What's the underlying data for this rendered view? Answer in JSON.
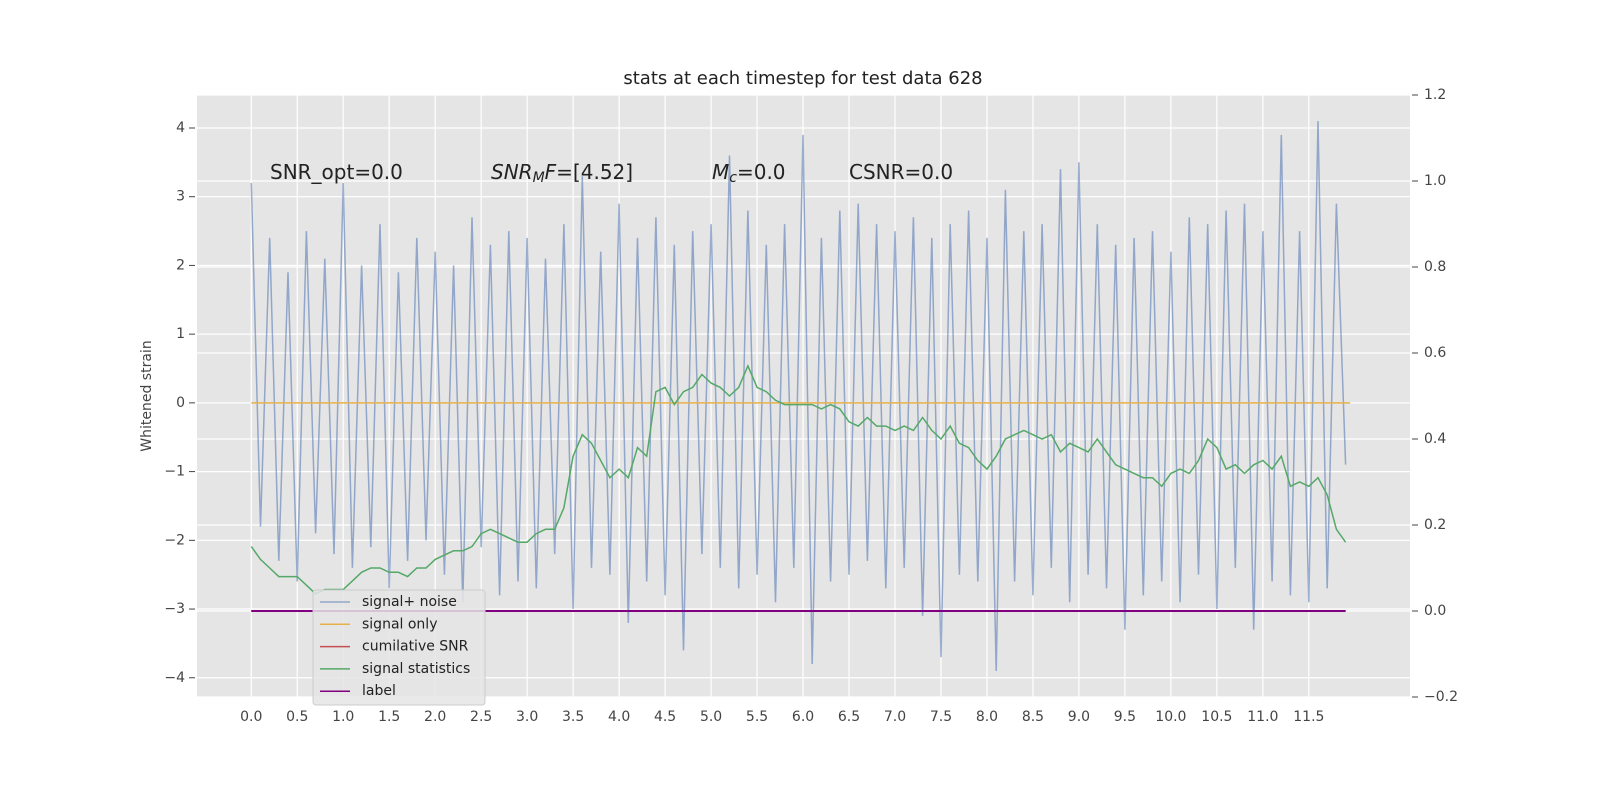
{
  "chart_data": {
    "type": "line",
    "title": "stats at each timestep for test data 628",
    "ylabel": "Whitened strain",
    "annotations": [
      {
        "parts": [
          {
            "text": "SNR_opt=0.0",
            "style": "normal"
          }
        ]
      },
      {
        "parts": [
          {
            "text": "SNR",
            "style": "italic"
          },
          {
            "text": "M",
            "style": "italic-sub"
          },
          {
            "text": "F",
            "style": "italic"
          },
          {
            "text": "=[4.52]",
            "style": "normal"
          }
        ]
      },
      {
        "parts": [
          {
            "text": "M",
            "style": "italic"
          },
          {
            "text": "c",
            "style": "italic-sub"
          },
          {
            "text": "=0.0",
            "style": "normal"
          }
        ]
      },
      {
        "parts": [
          {
            "text": "CSNR=0.0",
            "style": "normal"
          }
        ]
      }
    ],
    "x": [
      0,
      0.1,
      0.2,
      0.3,
      0.4,
      0.5,
      0.6,
      0.7,
      0.8,
      0.9,
      1,
      1.1,
      1.2,
      1.3,
      1.4,
      1.5,
      1.6,
      1.7,
      1.8,
      1.9,
      2,
      2.1,
      2.2,
      2.3,
      2.4,
      2.5,
      2.6,
      2.7,
      2.8,
      2.9,
      3,
      3.1,
      3.2,
      3.3,
      3.4,
      3.5,
      3.6,
      3.7,
      3.8,
      3.9,
      4,
      4.1,
      4.2,
      4.3,
      4.4,
      4.5,
      4.6,
      4.7,
      4.8,
      4.9,
      5,
      5.1,
      5.2,
      5.3,
      5.4,
      5.5,
      5.6,
      5.7,
      5.8,
      5.9,
      6,
      6.1,
      6.2,
      6.3,
      6.4,
      6.5,
      6.6,
      6.7,
      6.8,
      6.9,
      7,
      7.1,
      7.2,
      7.3,
      7.4,
      7.5,
      7.6,
      7.7,
      7.8,
      7.9,
      8,
      8.1,
      8.2,
      8.3,
      8.4,
      8.5,
      8.6,
      8.7,
      8.8,
      8.9,
      9,
      9.1,
      9.2,
      9.3,
      9.4,
      9.5,
      9.6,
      9.7,
      9.8,
      9.9,
      10,
      10.1,
      10.2,
      10.3,
      10.4,
      10.5,
      10.6,
      10.7,
      10.8,
      10.9,
      11,
      11.1,
      11.2,
      11.3,
      11.4,
      11.5,
      11.6,
      11.7,
      11.8,
      11.9
    ],
    "series": [
      {
        "name": "signal+ noise",
        "color": "#4c72b0",
        "alpha": 0.55,
        "axis": "y",
        "values": [
          3.2,
          -1.8,
          2.4,
          -2.3,
          1.9,
          -2.6,
          2.5,
          -1.9,
          2.1,
          -2.2,
          3.2,
          -2.4,
          2.0,
          -2.1,
          2.6,
          -2.7,
          1.9,
          -2.3,
          2.4,
          -2.0,
          2.2,
          -2.5,
          2.0,
          -2.9,
          2.7,
          -2.1,
          2.3,
          -2.8,
          2.5,
          -2.6,
          2.4,
          -2.7,
          2.1,
          -2.2,
          2.6,
          -3.0,
          3.3,
          -2.4,
          2.2,
          -2.5,
          2.9,
          -3.2,
          2.4,
          -2.6,
          2.7,
          -2.8,
          2.3,
          -3.6,
          2.5,
          -2.2,
          2.6,
          -2.4,
          3.6,
          -2.7,
          2.8,
          -2.5,
          2.3,
          -2.9,
          2.6,
          -2.4,
          3.9,
          -3.8,
          2.4,
          -2.6,
          2.8,
          -2.5,
          2.9,
          -2.3,
          2.6,
          -2.7,
          2.5,
          -2.4,
          2.7,
          -3.1,
          2.4,
          -3.7,
          2.6,
          -2.5,
          2.8,
          -2.6,
          2.4,
          -3.9,
          3.1,
          -2.6,
          2.5,
          -2.8,
          2.6,
          -2.4,
          3.4,
          -2.9,
          3.5,
          -2.5,
          2.6,
          -2.7,
          2.3,
          -3.3,
          2.4,
          -2.8,
          2.5,
          -2.6,
          2.2,
          -2.9,
          2.7,
          -2.5,
          2.6,
          -3.0,
          2.8,
          -2.4,
          2.9,
          -3.3,
          2.5,
          -2.6,
          3.9,
          -2.8,
          2.5,
          -2.9,
          4.1,
          -2.7,
          2.9,
          -0.9
        ]
      },
      {
        "name": "signal only",
        "color": "#e8b04a",
        "alpha": 1,
        "axis": "y",
        "x": [
          0,
          11.95
        ],
        "values": [
          0,
          0
        ]
      },
      {
        "name": "cumilative SNR",
        "color": "#c44e52",
        "alpha": 1,
        "axis": "y2",
        "x": [
          0,
          11.9
        ],
        "values": [
          0,
          0
        ]
      },
      {
        "name": "signal statistics",
        "color": "#55a868",
        "alpha": 1,
        "axis": "y2",
        "values": [
          0.15,
          0.12,
          0.1,
          0.08,
          0.08,
          0.08,
          0.06,
          0.04,
          0.05,
          0.05,
          0.05,
          0.07,
          0.09,
          0.1,
          0.1,
          0.09,
          0.09,
          0.08,
          0.1,
          0.1,
          0.12,
          0.13,
          0.14,
          0.14,
          0.15,
          0.18,
          0.19,
          0.18,
          0.17,
          0.16,
          0.16,
          0.18,
          0.19,
          0.19,
          0.24,
          0.36,
          0.41,
          0.39,
          0.35,
          0.31,
          0.33,
          0.31,
          0.38,
          0.36,
          0.51,
          0.52,
          0.48,
          0.51,
          0.52,
          0.55,
          0.53,
          0.52,
          0.5,
          0.52,
          0.57,
          0.52,
          0.51,
          0.49,
          0.48,
          0.48,
          0.48,
          0.48,
          0.47,
          0.48,
          0.47,
          0.44,
          0.43,
          0.45,
          0.43,
          0.43,
          0.42,
          0.43,
          0.42,
          0.45,
          0.42,
          0.4,
          0.43,
          0.39,
          0.38,
          0.35,
          0.33,
          0.36,
          0.4,
          0.41,
          0.42,
          0.41,
          0.4,
          0.41,
          0.37,
          0.39,
          0.38,
          0.37,
          0.4,
          0.37,
          0.34,
          0.33,
          0.32,
          0.31,
          0.31,
          0.29,
          0.32,
          0.33,
          0.32,
          0.35,
          0.4,
          0.38,
          0.33,
          0.34,
          0.32,
          0.34,
          0.35,
          0.33,
          0.36,
          0.29,
          0.3,
          0.29,
          0.31,
          0.27,
          0.19,
          0.16
        ]
      },
      {
        "name": "label",
        "color": "#800080",
        "alpha": 1,
        "axis": "y2",
        "x": [
          0,
          11.9
        ],
        "values": [
          0,
          0
        ]
      }
    ],
    "xlim": [
      -0.59,
      12.6
    ],
    "xticks": [
      {
        "value": 0,
        "label": "0.0"
      },
      0.5,
      {
        "value": 1,
        "label": "1.0"
      },
      1.5,
      {
        "value": 2,
        "label": "2.0"
      },
      2.5,
      {
        "value": 3,
        "label": "3.0"
      },
      3.5,
      {
        "value": 4,
        "label": "4.0"
      },
      4.5,
      {
        "value": 5,
        "label": "5.0"
      },
      5.5,
      {
        "value": 6,
        "label": "6.0"
      },
      6.5,
      {
        "value": 7,
        "label": "7.0"
      },
      7.5,
      {
        "value": 8,
        "label": "8.0"
      },
      8.5,
      {
        "value": 9,
        "label": "9.0"
      },
      9.5,
      {
        "value": 10,
        "label": "10.0"
      },
      10.5,
      {
        "value": 11,
        "label": "11.0"
      },
      11.5
    ],
    "ylim": [
      -4.28,
      4.48
    ],
    "yticks": [
      {
        "value": -4,
        "label": "−4"
      },
      {
        "value": -3,
        "label": "−3"
      },
      {
        "value": -2,
        "label": "−2"
      },
      {
        "value": -1,
        "label": "−1"
      },
      0,
      1,
      2,
      3,
      4
    ],
    "y2lim": [
      -0.2,
      1.2
    ],
    "y2ticks": [
      {
        "value": -0.2,
        "label": "−0.2"
      },
      {
        "value": 0,
        "label": "0.0"
      },
      0.2,
      0.4,
      0.6,
      0.8,
      {
        "value": 1,
        "label": "1.0"
      },
      1.2
    ],
    "grid": true,
    "legend": "lower left"
  }
}
